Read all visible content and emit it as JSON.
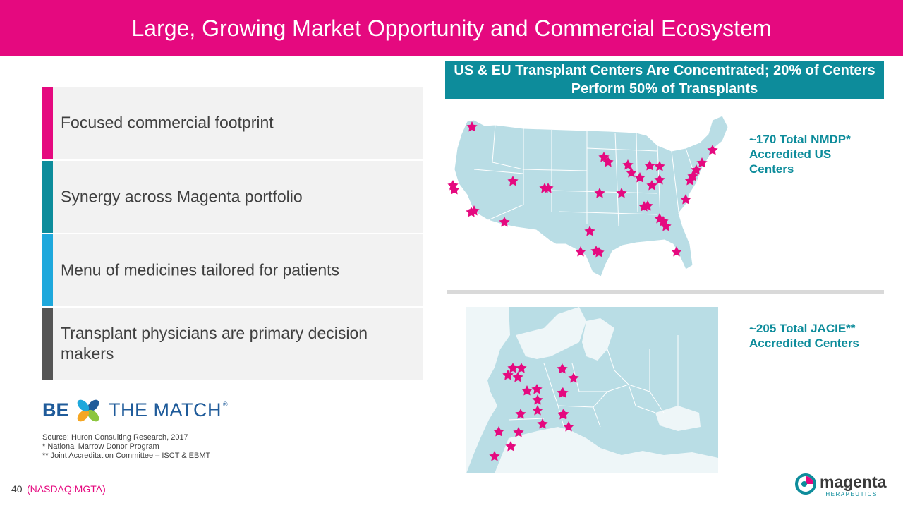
{
  "slide": {
    "title": "Large, Growing Market Opportunity and Commercial Ecosystem",
    "page_number": "40",
    "ticker": "(NASDAQ:MGTA)"
  },
  "panels": [
    {
      "text": "Focused commercial footprint",
      "bar_color": "#e5097f"
    },
    {
      "text": "Synergy across Magenta portfolio",
      "bar_color": "#0d8c9b"
    },
    {
      "text": "Menu of medicines tailored for patients",
      "bar_color": "#1ea8dc"
    },
    {
      "text": "Transplant physicians are primary decision makers",
      "bar_color": "#555555"
    }
  ],
  "logo": {
    "be": "BE",
    "text": "THE MATCH",
    "reg": "®"
  },
  "footnotes": {
    "source": "Source: Huron Consulting Research, 2017",
    "note1": "* National Marrow Donor Program",
    "note2": "** Joint Accreditation Committee – ISCT & EBMT"
  },
  "right": {
    "headline": "US & EU Transplant Centers Are Concentrated; 20% of Centers Perform 50% of Transplants",
    "us_stat": "~170 Total NMDP* Accredited US Centers",
    "eu_stat": "~205 Total JACIE** Accredited Centers"
  },
  "maps": {
    "us_caption": "US map",
    "eu_caption": "Europe map",
    "land_color": "#b9dde5",
    "sea_color": "#eef6f8",
    "star_color": "#e5097f",
    "us_star_count": 37,
    "eu_star_count": 22
  },
  "brand": {
    "name": "magenta",
    "sub": "THERAPEUTICS"
  },
  "colors": {
    "magenta": "#e5097f",
    "teal": "#0d8c9b",
    "panel_bg": "#f2f2f2"
  }
}
